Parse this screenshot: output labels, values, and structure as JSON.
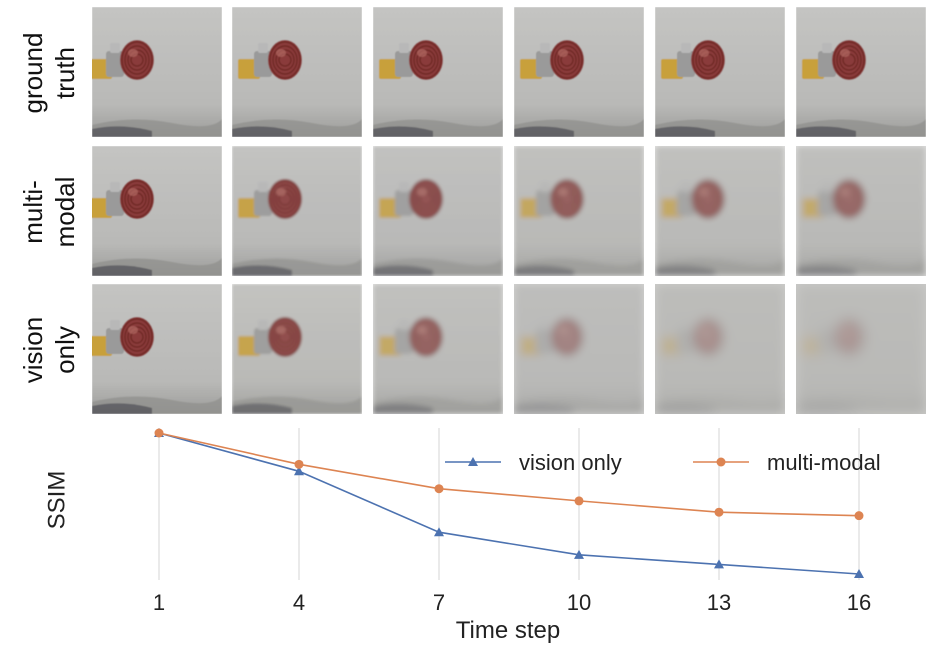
{
  "figure": {
    "rows": [
      {
        "label_lines": [
          "ground",
          "truth"
        ],
        "key": "ground_truth",
        "blur": [
          0.4,
          0.4,
          0.4,
          0.4,
          0.4,
          0.4
        ],
        "fade": [
          0,
          0,
          0,
          0,
          0,
          0
        ],
        "object_offset": [
          0,
          8,
          8,
          8,
          8,
          8
        ]
      },
      {
        "label_lines": [
          "multi-",
          "modal"
        ],
        "key": "multi_modal",
        "blur": [
          0.6,
          1.0,
          1.5,
          2.2,
          2.8,
          3.2
        ],
        "fade": [
          0,
          0.1,
          0.2,
          0.3,
          0.35,
          0.4
        ],
        "object_offset": [
          0,
          8,
          8,
          8,
          8,
          8
        ]
      },
      {
        "label_lines": [
          "vision",
          "only"
        ],
        "key": "vision_only",
        "blur": [
          0.6,
          1.2,
          2.5,
          4.0,
          5.0,
          6.0
        ],
        "fade": [
          0,
          0.15,
          0.35,
          0.6,
          0.7,
          0.75
        ],
        "object_offset": [
          0,
          8,
          8,
          8,
          8,
          8
        ]
      }
    ],
    "colors": {
      "background": "#b9b9b7",
      "floor": "#8e8e8c",
      "object": "#8a3b3a",
      "object_ring": "#6a2624",
      "gripper": "#c8a03a",
      "metal": "#9a9a9a"
    }
  },
  "chart_data": {
    "type": "line",
    "x": [
      1,
      4,
      7,
      10,
      13,
      16
    ],
    "xlabel": "Time step",
    "ylabel": "SSIM",
    "xticks": [
      "1",
      "4",
      "7",
      "10",
      "13",
      "16"
    ],
    "grid": "vertical",
    "legend_position": "top-right",
    "series": [
      {
        "name": "vision only",
        "marker": "triangle",
        "color": "#4c72b0",
        "values": [
          1.0,
          0.78,
          0.43,
          0.3,
          0.245,
          0.19
        ]
      },
      {
        "name": "multi-modal",
        "marker": "circle",
        "color": "#dd8452",
        "values": [
          1.0,
          0.82,
          0.68,
          0.61,
          0.545,
          0.525
        ]
      }
    ]
  }
}
